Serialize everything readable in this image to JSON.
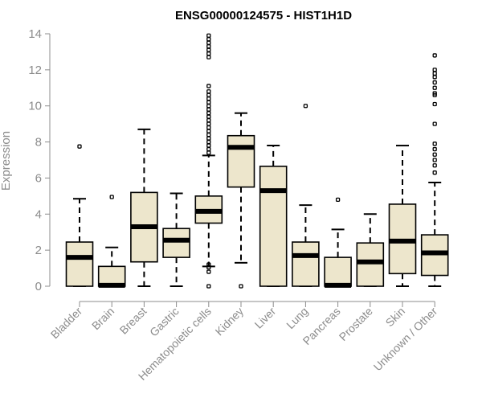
{
  "chart_data": {
    "type": "boxplot",
    "title": "ENSG00000124575 - HIST1H1D",
    "ylabel": "Expression",
    "xlabel": "",
    "ylim": [
      0,
      14
    ],
    "yticks": [
      0,
      2,
      4,
      6,
      8,
      10,
      12,
      14
    ],
    "grid": false,
    "box_fill": "#ede6cc",
    "box_stroke": "#000000",
    "axis_color": "#8c8c8c",
    "categories": [
      "Bladder",
      "Brain",
      "Breast",
      "Gastric",
      "Hematopoietic cells",
      "Kidney",
      "Liver",
      "Lung",
      "Pancreas",
      "Prostate",
      "Skin",
      "Unknown / Other"
    ],
    "boxes": [
      {
        "whisker_low": 0,
        "q1": 0,
        "median": 1.6,
        "q3": 2.45,
        "whisker_high": 4.85,
        "outliers": [
          7.75
        ]
      },
      {
        "whisker_low": 0,
        "q1": 0,
        "median": 0.05,
        "q3": 1.1,
        "whisker_high": 2.15,
        "outliers": [
          4.95
        ]
      },
      {
        "whisker_low": 0,
        "q1": 1.35,
        "median": 3.3,
        "q3": 5.2,
        "whisker_high": 8.7,
        "outliers": []
      },
      {
        "whisker_low": 0,
        "q1": 1.6,
        "median": 2.55,
        "q3": 3.2,
        "whisker_high": 5.15,
        "outliers": []
      },
      {
        "whisker_low": 1.1,
        "q1": 3.5,
        "median": 4.15,
        "q3": 5.0,
        "whisker_high": 7.25,
        "outliers": [
          0,
          0.8,
          1.05,
          1.2,
          7.4,
          7.6,
          7.8,
          8.0,
          8.2,
          8.4,
          8.6,
          8.8,
          9.0,
          9.2,
          9.4,
          9.6,
          9.8,
          10.0,
          10.2,
          10.4,
          10.6,
          10.8,
          11.1,
          12.7,
          12.9,
          13.1,
          13.3,
          13.5,
          13.7,
          13.9
        ]
      },
      {
        "whisker_low": 1.3,
        "q1": 5.5,
        "median": 7.7,
        "q3": 8.35,
        "whisker_high": 9.6,
        "outliers": [
          0
        ]
      },
      {
        "whisker_low": 0,
        "q1": 0,
        "median": 5.3,
        "q3": 6.65,
        "whisker_high": 7.8,
        "outliers": []
      },
      {
        "whisker_low": 0,
        "q1": 0,
        "median": 1.7,
        "q3": 2.45,
        "whisker_high": 4.5,
        "outliers": [
          10.0
        ]
      },
      {
        "whisker_low": 0,
        "q1": 0,
        "median": 0.05,
        "q3": 1.6,
        "whisker_high": 3.15,
        "outliers": [
          4.8
        ]
      },
      {
        "whisker_low": 0,
        "q1": 0,
        "median": 1.35,
        "q3": 2.4,
        "whisker_high": 4.0,
        "outliers": []
      },
      {
        "whisker_low": 0,
        "q1": 0.7,
        "median": 2.5,
        "q3": 4.55,
        "whisker_high": 7.8,
        "outliers": []
      },
      {
        "whisker_low": 0,
        "q1": 0.6,
        "median": 1.85,
        "q3": 2.85,
        "whisker_high": 5.75,
        "outliers": [
          6.3,
          6.7,
          7.0,
          7.3,
          7.6,
          7.9,
          9.0,
          10.1,
          10.6,
          10.7,
          11.0,
          11.3,
          11.6,
          11.8,
          12.0,
          12.8
        ]
      }
    ]
  }
}
